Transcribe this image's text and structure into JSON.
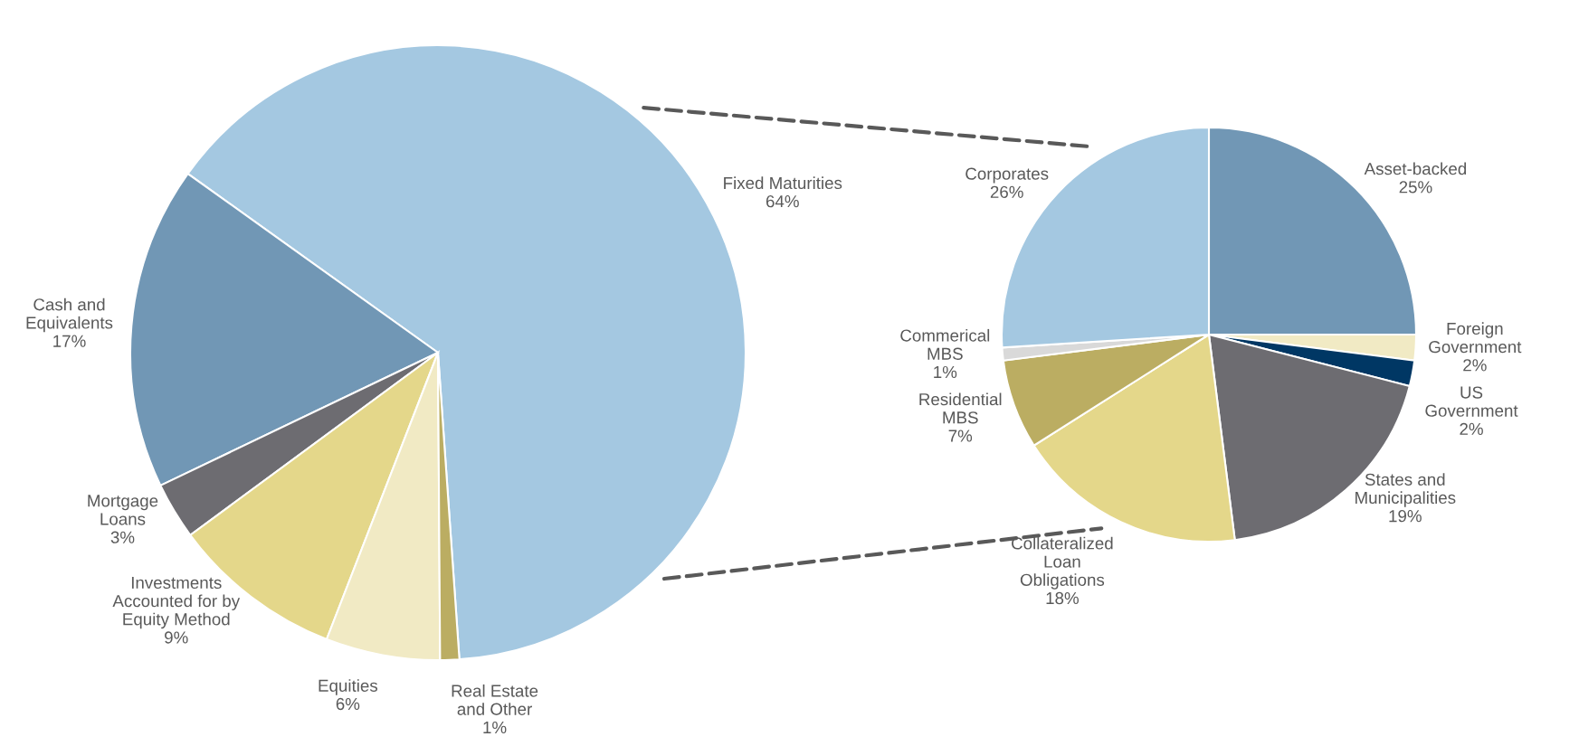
{
  "chart_data": [
    {
      "type": "pie",
      "categories": [
        "Fixed Maturities",
        "Cash and\nEquivalents",
        "Mortgage\nLoans",
        "Investments\nAccounted for by\nEquity Method",
        "Equities",
        "Real Estate\nand Other"
      ],
      "values": [
        64,
        17,
        3,
        9,
        6,
        1
      ],
      "value_labels": [
        "64%",
        "17%",
        "3%",
        "9%",
        "6%",
        "1%"
      ],
      "colors": [
        "#a4c8e1",
        "#7197b5",
        "#6d6c71",
        "#e4d78a",
        "#f1eac4",
        "#bbad62"
      ]
    },
    {
      "type": "pie",
      "categories": [
        "Asset-backed",
        "Foreign\nGovernment",
        "US\nGovernment",
        "States and\nMunicipalities",
        "Collateralized\nLoan\nObligations",
        "Residential\nMBS",
        "Commerical\nMBS",
        "Corporates"
      ],
      "values": [
        25,
        2,
        2,
        19,
        18,
        7,
        1,
        26
      ],
      "value_labels": [
        "25%",
        "2%",
        "2%",
        "19%",
        "18%",
        "7%",
        "1%",
        "26%"
      ],
      "colors": [
        "#7197b5",
        "#f1eac4",
        "#003764",
        "#6d6c71",
        "#e4d78a",
        "#bbad62",
        "#d9d9d9",
        "#a4c8e1"
      ]
    }
  ]
}
